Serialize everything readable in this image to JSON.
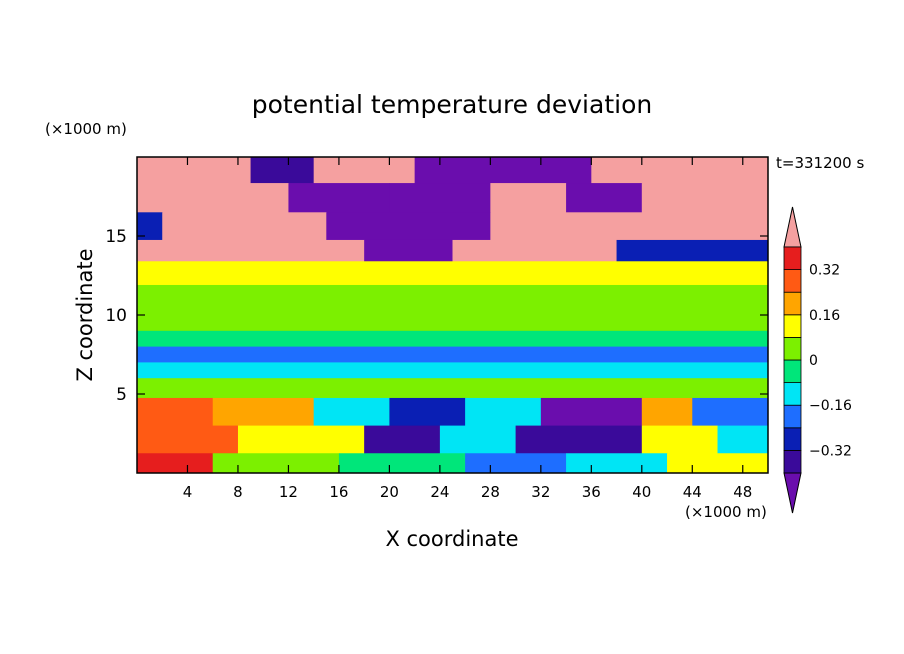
{
  "chart_data": {
    "type": "heatmap",
    "title": "potential temperature deviation",
    "xlabel": "X coordinate",
    "ylabel": "Z coordinate",
    "x_unit": "(×1000 m)",
    "y_unit": "(×1000 m)",
    "time_label": "t=331200 s",
    "xlim": [
      0,
      50
    ],
    "ylim": [
      0,
      20
    ],
    "x_ticks": [
      4,
      8,
      12,
      16,
      20,
      24,
      28,
      32,
      36,
      40,
      44,
      48
    ],
    "y_ticks": [
      5,
      10,
      15
    ],
    "colorbar": {
      "levels": [
        -0.4,
        -0.32,
        -0.24,
        -0.16,
        -0.08,
        0,
        0.08,
        0.16,
        0.24,
        0.32,
        0.4
      ],
      "tick_labels": [
        "0.32",
        "0.16",
        "0",
        "−0.16",
        "−0.32"
      ],
      "tick_values": [
        0.32,
        0.16,
        0,
        -0.16,
        -0.32
      ],
      "colors": [
        "#6a0dad",
        "#3a0a9a",
        "#0a1fb4",
        "#1e6eff",
        "#00e5f5",
        "#00e67a",
        "#7cf000",
        "#ffff00",
        "#ffa500",
        "#ff5a14",
        "#e61e1e",
        "#f5a0a0"
      ],
      "extend": "both"
    },
    "field_rows": [
      {
        "z": 19.2,
        "bands": [
          [
            0,
            9,
            0.5
          ],
          [
            9,
            14,
            -0.4
          ],
          [
            14,
            22,
            0.5
          ],
          [
            22,
            36,
            -0.44
          ],
          [
            36,
            50,
            0.5
          ]
        ]
      },
      {
        "z": 17.5,
        "bands": [
          [
            0,
            12,
            0.5
          ],
          [
            12,
            20,
            -0.44
          ],
          [
            20,
            28,
            -0.44
          ],
          [
            28,
            34,
            0.5
          ],
          [
            34,
            40,
            -0.44
          ],
          [
            40,
            50,
            0.5
          ]
        ]
      },
      {
        "z": 15.5,
        "bands": [
          [
            0,
            2,
            -0.3
          ],
          [
            2,
            15,
            0.5
          ],
          [
            15,
            28,
            -0.44
          ],
          [
            28,
            42,
            0.5
          ],
          [
            42,
            50,
            0.5
          ]
        ]
      },
      {
        "z": 14.0,
        "bands": [
          [
            0,
            18,
            0.5
          ],
          [
            18,
            25,
            -0.44
          ],
          [
            25,
            38,
            0.5
          ],
          [
            38,
            50,
            -0.3
          ]
        ]
      },
      {
        "z": 12.8,
        "bands": [
          [
            0,
            50,
            0.12
          ]
        ]
      },
      {
        "z": 11.0,
        "bands": [
          [
            0,
            50,
            0.04
          ]
        ]
      },
      {
        "z": 9.5,
        "bands": [
          [
            0,
            50,
            0.06
          ]
        ]
      },
      {
        "z": 8.5,
        "bands": [
          [
            0,
            50,
            -0.04
          ]
        ]
      },
      {
        "z": 7.5,
        "bands": [
          [
            0,
            50,
            -0.2
          ]
        ]
      },
      {
        "z": 6.5,
        "bands": [
          [
            0,
            50,
            -0.12
          ]
        ]
      },
      {
        "z": 5.5,
        "bands": [
          [
            0,
            50,
            0.0
          ]
        ]
      },
      {
        "z": 4.0,
        "bands": [
          [
            0,
            6,
            0.3
          ],
          [
            6,
            14,
            0.2
          ],
          [
            14,
            20,
            -0.1
          ],
          [
            20,
            26,
            -0.3
          ],
          [
            26,
            32,
            -0.1
          ],
          [
            32,
            40,
            -0.44
          ],
          [
            40,
            44,
            0.2
          ],
          [
            44,
            50,
            -0.2
          ]
        ]
      },
      {
        "z": 2.0,
        "bands": [
          [
            0,
            8,
            0.28
          ],
          [
            8,
            18,
            0.1
          ],
          [
            18,
            24,
            -0.36
          ],
          [
            24,
            30,
            -0.12
          ],
          [
            30,
            40,
            -0.36
          ],
          [
            40,
            46,
            0.12
          ],
          [
            46,
            50,
            -0.1
          ]
        ]
      },
      {
        "z": 0.5,
        "bands": [
          [
            0,
            6,
            0.36
          ],
          [
            6,
            16,
            0.05
          ],
          [
            16,
            26,
            -0.08
          ],
          [
            26,
            34,
            -0.2
          ],
          [
            34,
            42,
            -0.12
          ],
          [
            42,
            50,
            0.1
          ]
        ]
      }
    ]
  }
}
